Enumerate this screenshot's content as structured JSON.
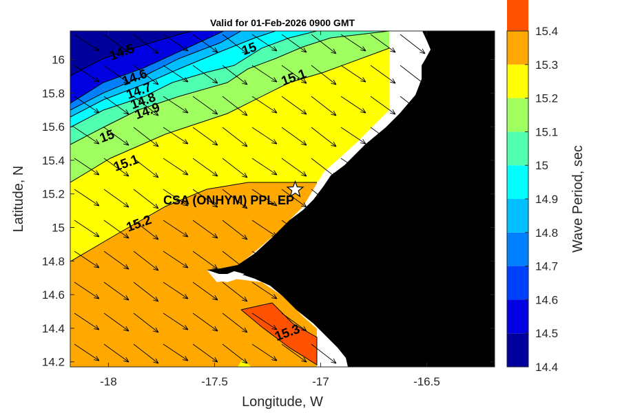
{
  "chart_data": {
    "type": "contour map",
    "title": "Valid for 01-Feb-2026 0900 GMT",
    "xlabel": "Longitude, W",
    "ylabel": "Latitude, N",
    "xlim": [
      -18.18,
      -16.18
    ],
    "ylim": [
      14.17,
      16.17
    ],
    "x_ticks": [
      "-18",
      "-17.5",
      "-17",
      "-16.5"
    ],
    "x_tick_values": [
      -18,
      -17.5,
      -17,
      -16.5
    ],
    "y_ticks": [
      "14.2",
      "14.4",
      "14.6",
      "14.8",
      "15",
      "15.2",
      "15.4",
      "15.6",
      "15.8",
      "16"
    ],
    "y_tick_values": [
      14.2,
      14.4,
      14.6,
      14.8,
      15.0,
      15.2,
      15.4,
      15.6,
      15.8,
      16.0
    ],
    "colorbar": {
      "label": "Wave Period, sec",
      "levels": [
        14.4,
        14.5,
        14.6,
        14.7,
        14.8,
        14.9,
        15.0,
        15.1,
        15.2,
        15.3,
        15.4
      ],
      "tick_labels": [
        "14.4",
        "14.5",
        "14.6",
        "14.7",
        "14.8",
        "14.9",
        "15",
        "15.1",
        "15.2",
        "15.3",
        "15.4"
      ],
      "colors": [
        "#00009c",
        "#0000e0",
        "#0040ff",
        "#0080ff",
        "#00c0ff",
        "#00ffff",
        "#50ffb0",
        "#a0ff60",
        "#ffff00",
        "#ffa800",
        "#ff5200"
      ]
    },
    "contour_labels": [
      {
        "text": "14.5",
        "lon": -17.93,
        "lat": 16.02
      },
      {
        "text": "14.6",
        "lon": -17.87,
        "lat": 15.87
      },
      {
        "text": "14.7",
        "lon": -17.85,
        "lat": 15.79
      },
      {
        "text": "14.8",
        "lon": -17.83,
        "lat": 15.73
      },
      {
        "text": "14.9",
        "lon": -17.81,
        "lat": 15.67
      },
      {
        "text": "15",
        "lon": -17.33,
        "lat": 16.04
      },
      {
        "text": "15.1",
        "lon": -17.12,
        "lat": 15.87
      },
      {
        "text": "15",
        "lon": -18.0,
        "lat": 15.52
      },
      {
        "text": "15.1",
        "lon": -17.91,
        "lat": 15.36
      },
      {
        "text": "15.2",
        "lon": -17.85,
        "lat": 15.0
      },
      {
        "text": "15.3",
        "lon": -17.15,
        "lat": 14.35
      }
    ],
    "site": {
      "name": "CSA (ONHYM) PPL EP",
      "lon": -17.12,
      "lat": 15.225,
      "marker": "star"
    },
    "direction_arrows": "toward south-east",
    "land_color": "#000000"
  }
}
